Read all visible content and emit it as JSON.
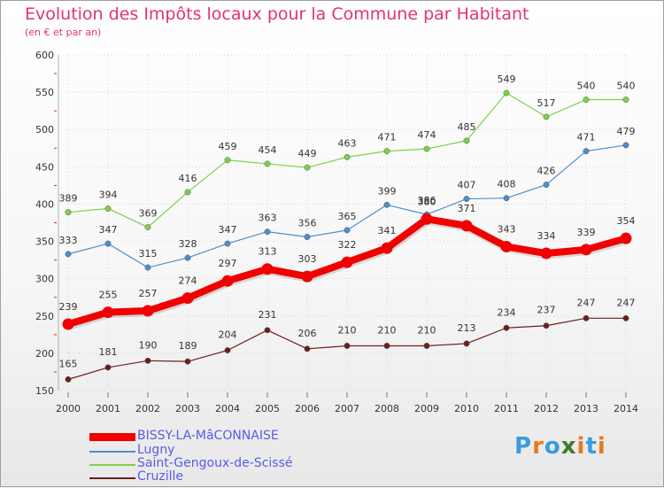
{
  "title": "Evolution des Impôts locaux pour la Commune par Habitant",
  "subtitle": "(en € et par an)",
  "logo": {
    "text": "Proxiti",
    "colors": [
      "#3b9be0",
      "#e87a1e",
      "#3b9be0",
      "#3a7d2a",
      "#e87a1e",
      "#3b9be0",
      "#e87a1e"
    ]
  },
  "chart_data": {
    "type": "line",
    "title": "Evolution des Impôts locaux pour la Commune par Habitant",
    "subtitle": "(en € et par an)",
    "xlabel": "",
    "ylabel": "",
    "ylim": [
      150,
      600
    ],
    "yticks": [
      150,
      200,
      250,
      300,
      350,
      400,
      450,
      500,
      550,
      600
    ],
    "grid": true,
    "legend_position": "bottom-left",
    "x": [
      "2000",
      "2001",
      "2002",
      "2003",
      "2004",
      "2005",
      "2006",
      "2007",
      "2008",
      "2009",
      "2010",
      "2011",
      "2012",
      "2013",
      "2014"
    ],
    "series": [
      {
        "name": "Saint-Gengoux-de-Scissé",
        "color": "#7dd14a",
        "values": [
          389,
          394,
          369,
          416,
          459,
          454,
          449,
          463,
          471,
          474,
          485,
          549,
          517,
          540,
          540
        ]
      },
      {
        "name": "Lugny",
        "color": "#4a8fcf",
        "values": [
          333,
          347,
          315,
          328,
          347,
          363,
          356,
          365,
          399,
          386,
          407,
          408,
          426,
          471,
          479
        ]
      },
      {
        "name": "Cruzille",
        "color": "#6e1d1d",
        "values": [
          165,
          181,
          190,
          189,
          204,
          231,
          206,
          210,
          210,
          210,
          213,
          234,
          237,
          247,
          247
        ]
      },
      {
        "name": "BISSY-LA-MâCONNAISE",
        "color": "#f00000",
        "values": [
          239,
          255,
          257,
          274,
          297,
          313,
          303,
          322,
          341,
          380,
          371,
          343,
          334,
          339,
          354
        ]
      }
    ],
    "legend_order": [
      "BISSY-LA-MâCONNAISE",
      "Lugny",
      "Saint-Gengoux-de-Scissé",
      "Cruzille"
    ]
  }
}
